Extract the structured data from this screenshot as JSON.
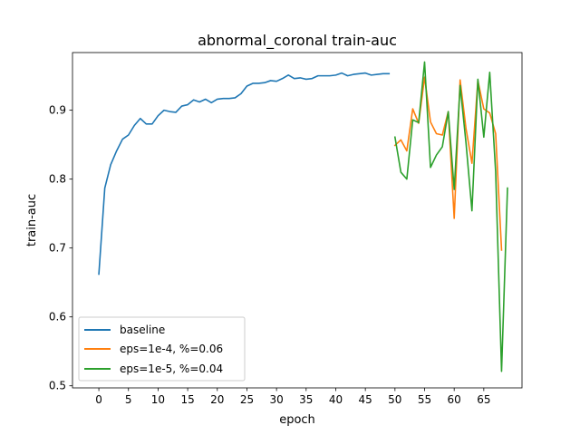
{
  "chart_data": {
    "type": "line",
    "title": "abnormal_coronal train-auc",
    "xlabel": "epoch",
    "ylabel": "train-auc",
    "xlim": [
      -4.45,
      71.45
    ],
    "ylim": [
      0.497,
      0.9837
    ],
    "xticks": [
      0,
      5,
      10,
      15,
      20,
      25,
      30,
      35,
      40,
      45,
      50,
      55,
      60,
      65
    ],
    "yticks": [
      0.5,
      0.6,
      0.7,
      0.8,
      0.9
    ],
    "ytick_labels": [
      "0.5",
      "0.6",
      "0.7",
      "0.8",
      "0.9"
    ],
    "grid": false,
    "legend_position": "lower-left",
    "series": [
      {
        "name": "baseline",
        "color": "#1f77b4",
        "x": [
          0,
          1,
          2,
          3,
          4,
          5,
          6,
          7,
          8,
          9,
          10,
          11,
          12,
          13,
          14,
          15,
          16,
          17,
          18,
          19,
          20,
          21,
          22,
          23,
          24,
          25,
          26,
          27,
          28,
          29,
          30,
          31,
          32,
          33,
          34,
          35,
          36,
          37,
          38,
          39,
          40,
          41,
          42,
          43,
          44,
          45,
          46,
          47,
          48,
          49
        ],
        "y": [
          0.662,
          0.787,
          0.821,
          0.841,
          0.858,
          0.864,
          0.878,
          0.888,
          0.88,
          0.88,
          0.892,
          0.9,
          0.898,
          0.897,
          0.906,
          0.908,
          0.915,
          0.912,
          0.916,
          0.911,
          0.916,
          0.917,
          0.917,
          0.918,
          0.924,
          0.935,
          0.939,
          0.939,
          0.94,
          0.943,
          0.942,
          0.946,
          0.951,
          0.946,
          0.947,
          0.945,
          0.946,
          0.95,
          0.95,
          0.95,
          0.951,
          0.954,
          0.95,
          0.952,
          0.953,
          0.954,
          0.951,
          0.952,
          0.953,
          0.953
        ]
      },
      {
        "name": "eps=1e-4, %=0.06",
        "color": "#ff7f0e",
        "x": [
          50,
          51,
          52,
          53,
          54,
          55,
          56,
          57,
          58,
          59,
          60,
          61,
          62,
          63,
          64,
          65,
          66,
          67,
          68
        ],
        "y": [
          0.849,
          0.857,
          0.841,
          0.902,
          0.881,
          0.948,
          0.883,
          0.866,
          0.864,
          0.898,
          0.743,
          0.944,
          0.873,
          0.823,
          0.943,
          0.902,
          0.896,
          0.866,
          0.697
        ]
      },
      {
        "name": "eps=1e-5, %=0.04",
        "color": "#2ca02c",
        "x": [
          50,
          51,
          52,
          53,
          54,
          55,
          56,
          57,
          58,
          59,
          60,
          61,
          62,
          63,
          64,
          65,
          66,
          67,
          68,
          69
        ],
        "y": [
          0.861,
          0.81,
          0.8,
          0.886,
          0.882,
          0.97,
          0.817,
          0.835,
          0.847,
          0.898,
          0.785,
          0.936,
          0.852,
          0.754,
          0.945,
          0.861,
          0.955,
          0.811,
          0.521,
          0.787
        ]
      }
    ]
  }
}
